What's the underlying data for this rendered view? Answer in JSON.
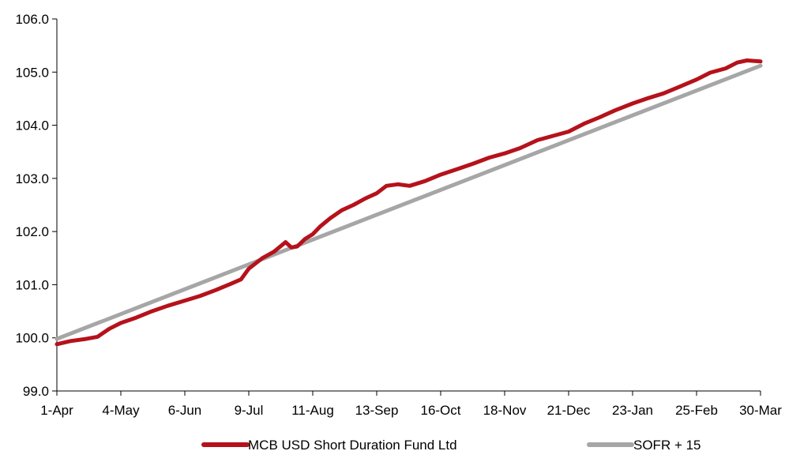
{
  "chart_data": {
    "type": "line",
    "title": "",
    "xlabel": "",
    "ylabel": "",
    "ylim": [
      99.0,
      106.0
    ],
    "y_ticks": [
      99.0,
      100.0,
      101.0,
      102.0,
      103.0,
      104.0,
      105.0,
      106.0
    ],
    "y_tick_labels": [
      "99.0",
      "100.0",
      "101.0",
      "102.0",
      "103.0",
      "104.0",
      "105.0",
      "106.0"
    ],
    "x_tick_labels": [
      "1-Apr",
      "4-May",
      "6-Jun",
      "9-Jul",
      "11-Aug",
      "13-Sep",
      "16-Oct",
      "18-Nov",
      "21-Dec",
      "23-Jan",
      "25-Feb",
      "30-Mar"
    ],
    "grid": false,
    "legend_position": "bottom",
    "series": [
      {
        "name": "MCB USD Short Duration Fund Ltd",
        "color": "#b5121b",
        "points": [
          [
            "1-Apr",
            99.88
          ],
          [
            "8-Apr",
            99.94
          ],
          [
            "16-Apr",
            99.98
          ],
          [
            "22-Apr",
            100.02
          ],
          [
            "28-Apr",
            100.17
          ],
          [
            "4-May",
            100.28
          ],
          [
            "12-May",
            100.38
          ],
          [
            "20-May",
            100.5
          ],
          [
            "28-May",
            100.6
          ],
          [
            "6-Jun",
            100.7
          ],
          [
            "14-Jun",
            100.79
          ],
          [
            "22-Jun",
            100.9
          ],
          [
            "30-Jun",
            101.02
          ],
          [
            "5-Jul",
            101.1
          ],
          [
            "9-Jul",
            101.3
          ],
          [
            "16-Jul",
            101.5
          ],
          [
            "22-Jul",
            101.62
          ],
          [
            "28-Jul",
            101.8
          ],
          [
            "31-Jul",
            101.7
          ],
          [
            "3-Aug",
            101.72
          ],
          [
            "7-Aug",
            101.86
          ],
          [
            "11-Aug",
            101.95
          ],
          [
            "15-Aug",
            102.1
          ],
          [
            "20-Aug",
            102.25
          ],
          [
            "26-Aug",
            102.4
          ],
          [
            "1-Sep",
            102.5
          ],
          [
            "7-Sep",
            102.62
          ],
          [
            "13-Sep",
            102.72
          ],
          [
            "18-Sep",
            102.86
          ],
          [
            "24-Sep",
            102.89
          ],
          [
            "30-Sep",
            102.86
          ],
          [
            "8-Oct",
            102.95
          ],
          [
            "16-Oct",
            103.07
          ],
          [
            "25-Oct",
            103.18
          ],
          [
            "2-Nov",
            103.28
          ],
          [
            "10-Nov",
            103.39
          ],
          [
            "18-Nov",
            103.47
          ],
          [
            "26-Nov",
            103.57
          ],
          [
            "5-Dec",
            103.72
          ],
          [
            "13-Dec",
            103.8
          ],
          [
            "21-Dec",
            103.88
          ],
          [
            "29-Dec",
            104.03
          ],
          [
            "6-Jan",
            104.15
          ],
          [
            "14-Jan",
            104.28
          ],
          [
            "23-Jan",
            104.41
          ],
          [
            "31-Jan",
            104.51
          ],
          [
            "8-Feb",
            104.6
          ],
          [
            "16-Feb",
            104.72
          ],
          [
            "25-Feb",
            104.86
          ],
          [
            "4-Mar",
            104.99
          ],
          [
            "12-Mar",
            105.07
          ],
          [
            "18-Mar",
            105.18
          ],
          [
            "23-Mar",
            105.22
          ],
          [
            "30-Mar",
            105.2
          ]
        ]
      },
      {
        "name": "SOFR + 15",
        "color": "#a6a6a6",
        "points": [
          [
            "1-Apr",
            99.98
          ],
          [
            "30-Mar",
            105.12
          ]
        ]
      }
    ]
  }
}
